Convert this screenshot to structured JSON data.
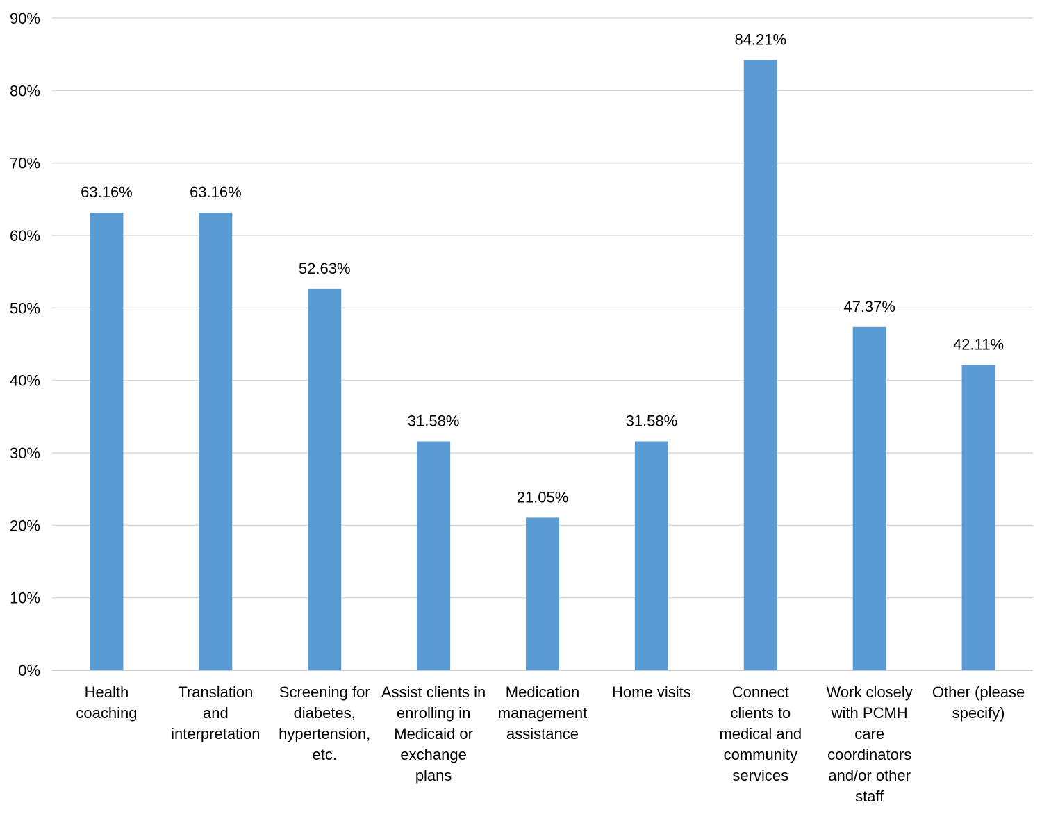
{
  "chart_data": {
    "type": "bar",
    "title": "",
    "xlabel": "",
    "ylabel": "",
    "ylim": [
      0,
      90
    ],
    "y_tick_step": 10,
    "y_ticks": [
      "0%",
      "10%",
      "20%",
      "30%",
      "40%",
      "50%",
      "60%",
      "70%",
      "80%",
      "90%"
    ],
    "grid": true,
    "legend": "none",
    "bar_color": "#5B9BD5",
    "categories": [
      [
        "Health",
        "coaching"
      ],
      [
        "Translation",
        "and",
        "interpretation"
      ],
      [
        "Screening for",
        "diabetes,",
        "hypertension,",
        "etc."
      ],
      [
        "Assist clients in",
        "enrolling in",
        "Medicaid or",
        "exchange",
        "plans"
      ],
      [
        "Medication",
        "management",
        "assistance"
      ],
      [
        "Home visits"
      ],
      [
        "Connect",
        "clients to",
        "medical and",
        "community",
        "services"
      ],
      [
        "Work closely",
        "with PCMH",
        "care",
        "coordinators",
        "and/or other",
        "staff"
      ],
      [
        "Other (please",
        "specify)"
      ]
    ],
    "values": [
      63.16,
      63.16,
      52.63,
      31.58,
      21.05,
      31.58,
      84.21,
      47.37,
      42.11
    ],
    "data_labels": [
      "63.16%",
      "63.16%",
      "52.63%",
      "31.58%",
      "21.05%",
      "31.58%",
      "84.21%",
      "47.37%",
      "42.11%"
    ]
  }
}
